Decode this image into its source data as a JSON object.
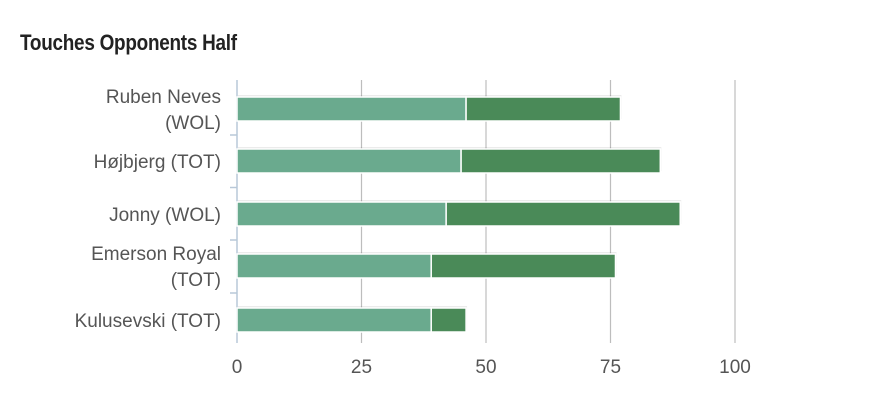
{
  "chart_data": {
    "type": "bar",
    "orientation": "horizontal",
    "stacked": true,
    "title": "Touches Opponents Half",
    "xlabel": "",
    "ylabel": "",
    "categories": [
      [
        "Ruben Neves",
        "(WOL)"
      ],
      [
        "Højbjerg (TOT)"
      ],
      [
        "Jonny (WOL)"
      ],
      [
        "Emerson Royal",
        "(TOT)"
      ],
      [
        "Kulusevski (TOT)"
      ]
    ],
    "series": [
      {
        "values": [
          46,
          45,
          42,
          39,
          39
        ],
        "color": "#6aaa8e"
      },
      {
        "values": [
          31,
          40,
          47,
          37,
          7
        ],
        "color": "#4a8a58"
      }
    ],
    "xlim": [
      0,
      100
    ],
    "xticks": [
      0,
      25,
      50,
      75,
      100
    ],
    "grid": true,
    "legend": "none"
  }
}
